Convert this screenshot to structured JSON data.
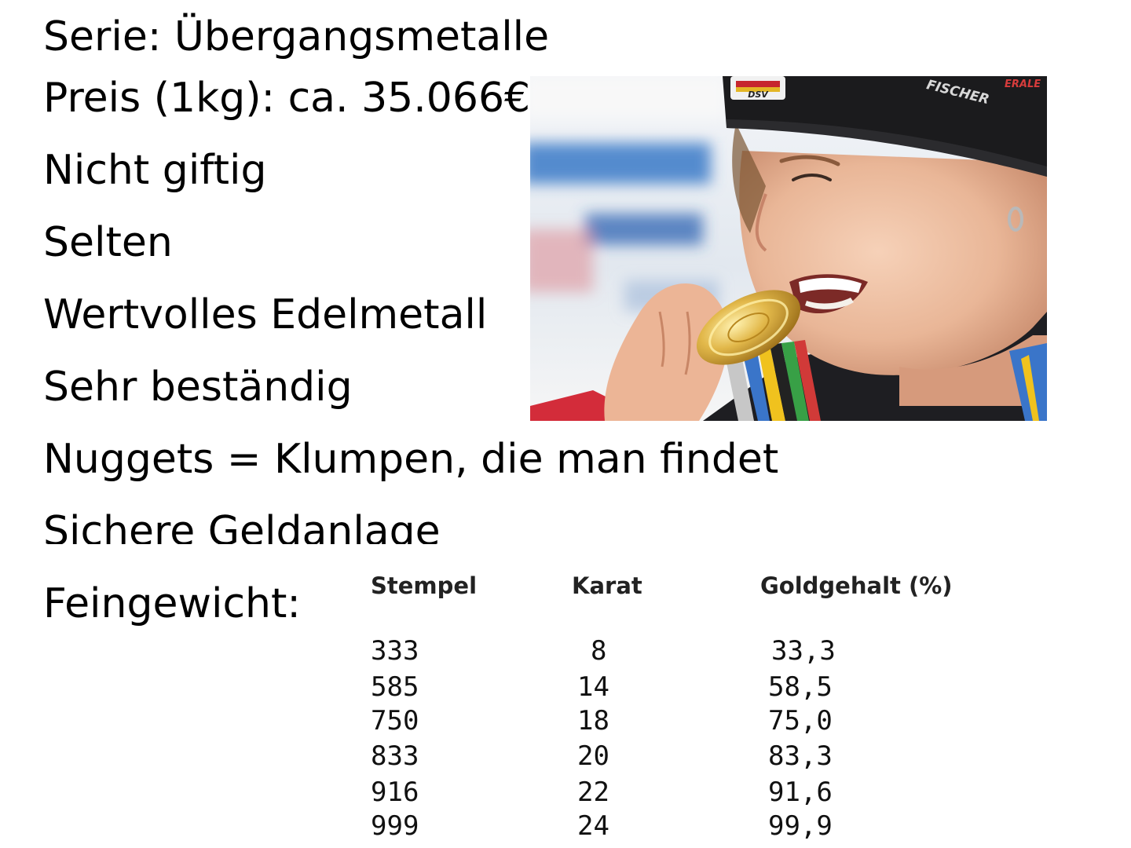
{
  "lines": {
    "serie": "Serie: Übergangsmetalle",
    "preis": "Preis (1kg): ca. 35.066€",
    "giftig": "Nicht giftig",
    "selten": "Selten",
    "edelmetall": "Wertvolles Edelmetall",
    "bestaendig": "Sehr beständig",
    "nuggets": "Nuggets = Klumpen, die man findet",
    "geldanlage": "Sichere Geldanlage",
    "feingewicht": "Feingewicht:"
  },
  "photo": {
    "cap_brand": "FISCHER",
    "cap_edge_text": "ERALE",
    "cap_badge": "DSV"
  },
  "table": {
    "headers": [
      "Stempel",
      "Karat",
      "Goldgehalt (%)"
    ],
    "rows": [
      [
        "333",
        "8",
        "33,3"
      ],
      [
        "585",
        "14",
        "58,5"
      ],
      [
        "750",
        "18",
        "75,0"
      ],
      [
        "833",
        "20",
        "83,3"
      ],
      [
        "916",
        "22",
        "91,6"
      ],
      [
        "999",
        "24",
        "99,9"
      ]
    ]
  }
}
